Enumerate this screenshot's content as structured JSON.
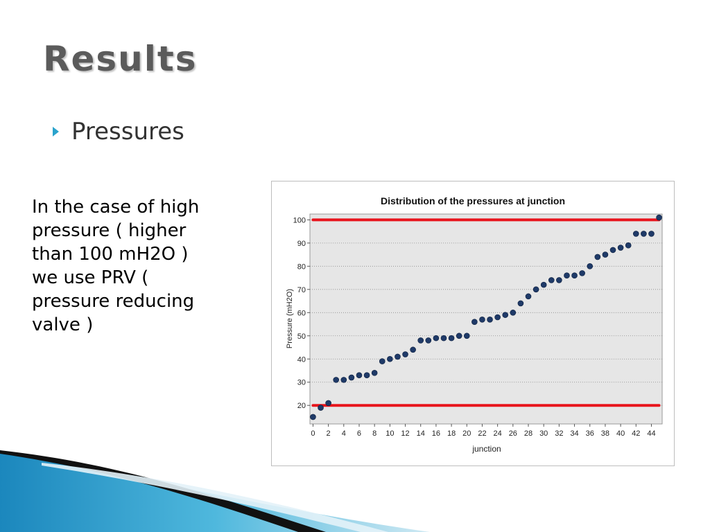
{
  "slide": {
    "title": "Results",
    "bullet": "Pressures",
    "note_lines": [
      "In the case of high",
      "pressure ( higher",
      "than 100 mH2O )",
      "we use PRV (",
      "pressure reducing",
      "valve )"
    ]
  },
  "colors": {
    "accent": "#2aa3cc",
    "threshold": "#e8141c",
    "point": "#1f3a68",
    "plot_bg": "#e6e6e6"
  },
  "chart_data": {
    "type": "scatter",
    "title": "Distribution of the pressures at junction",
    "xlabel": "junction",
    "ylabel": "Pressure (mH2O)",
    "xlim": [
      -0.4,
      45.4
    ],
    "ylim": [
      12,
      102.5
    ],
    "xticks": [
      0,
      2,
      4,
      6,
      8,
      10,
      12,
      14,
      16,
      18,
      20,
      22,
      24,
      26,
      28,
      30,
      32,
      34,
      36,
      38,
      40,
      42,
      44
    ],
    "yticks": [
      20,
      30,
      40,
      50,
      60,
      70,
      80,
      90,
      100
    ],
    "grid": true,
    "legend": "none",
    "thresholds": [
      20,
      100
    ],
    "series": [
      {
        "x": [
          0,
          1,
          2,
          3,
          4,
          5,
          6,
          7,
          8,
          9,
          10,
          11,
          12,
          13,
          14,
          15,
          16,
          17,
          18,
          19,
          20,
          21,
          22,
          23,
          24,
          25,
          26,
          27,
          28,
          29,
          30,
          31,
          32,
          33,
          34,
          35,
          36,
          37,
          38,
          39,
          40,
          41,
          42,
          43,
          44,
          45
        ],
        "values": [
          15,
          19,
          21,
          31,
          31,
          32,
          33,
          33,
          34,
          39,
          40,
          41,
          42,
          44,
          48,
          48,
          49,
          49,
          49,
          50,
          50,
          56,
          57,
          57,
          58,
          59,
          60,
          64,
          67,
          70,
          72,
          74,
          74,
          76,
          76,
          77,
          80,
          84,
          85,
          87,
          88,
          89,
          94,
          94,
          94,
          101
        ]
      }
    ]
  }
}
